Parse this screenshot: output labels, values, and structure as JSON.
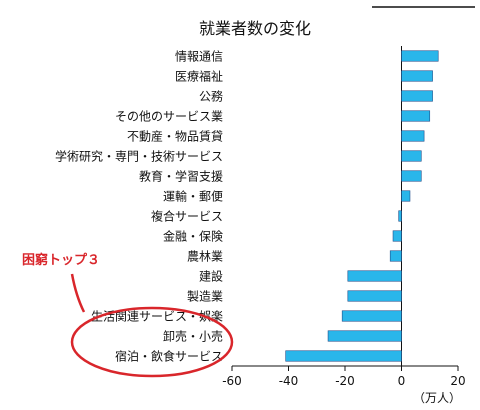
{
  "chart_data": {
    "type": "bar",
    "orientation": "horizontal",
    "title": "就業者数の変化",
    "categories": [
      "情報通信",
      "医療福祉",
      "公務",
      "その他のサービス業",
      "不動産・物品賃貸",
      "学術研究・専門・技術サービス",
      "教育・学習支援",
      "運輸・郵便",
      "複合サービス",
      "金融・保険",
      "農林業",
      "建設",
      "製造業",
      "生活関連サービス・娯楽",
      "卸売・小売",
      "宿泊・飲食サービス"
    ],
    "values": [
      13,
      11,
      11,
      10,
      8,
      7,
      7,
      3,
      -1,
      -3,
      -4,
      -19,
      -19,
      -21,
      -26,
      -41
    ],
    "xlim": [
      -60,
      20
    ],
    "xticks": [
      -60,
      -40,
      -20,
      0,
      20
    ],
    "unit_label": "（万人）",
    "bar_color": "#29b6ea",
    "grid": false,
    "annotation": {
      "text": "困窮トップ３",
      "color": "#d9262b"
    }
  }
}
